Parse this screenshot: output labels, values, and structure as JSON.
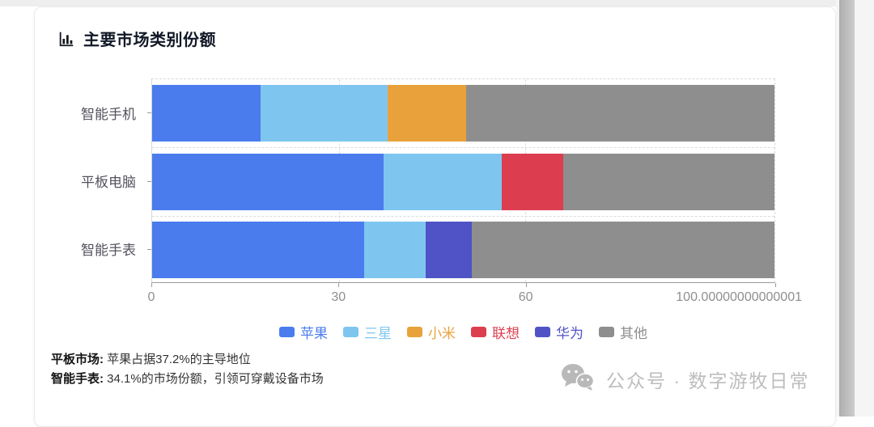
{
  "page": {
    "title": "主要市场类别份额",
    "annotations": [
      {
        "label": "平板市场:",
        "text": "苹果占据37.2%的主导地位"
      },
      {
        "label": "智能手表:",
        "text": "34.1%的市场份额，引领可穿戴设备市场"
      }
    ],
    "watermark": {
      "text": "公众号 · 数字游牧日常"
    }
  },
  "chart_data": {
    "type": "bar",
    "orientation": "horizontal",
    "stacked": true,
    "grid": "dashed",
    "legend_position": "bottom",
    "categories": [
      {
        "id": "smartphone",
        "label": "智能手机"
      },
      {
        "id": "tablet",
        "label": "平板电脑"
      },
      {
        "id": "smartwatch",
        "label": "智能手表"
      }
    ],
    "series": [
      {
        "id": "apple",
        "name": "苹果",
        "color": "#4a7cee",
        "values": [
          17.4,
          37.2,
          34.1
        ]
      },
      {
        "id": "samsung",
        "name": "三星",
        "color": "#7ec6f0",
        "values": [
          20.4,
          19.0,
          9.8
        ]
      },
      {
        "id": "xiaomi",
        "name": "小米",
        "color": "#e9a23b",
        "values": [
          12.7,
          0,
          0
        ]
      },
      {
        "id": "lenovo",
        "name": "联想",
        "color": "#dc3e50",
        "values": [
          0,
          9.9,
          0
        ]
      },
      {
        "id": "huawei",
        "name": "华为",
        "color": "#5053c5",
        "values": [
          0,
          0,
          7.5
        ]
      },
      {
        "id": "other",
        "name": "其他",
        "color": "#8e8e8e",
        "values": [
          49.5,
          33.9,
          48.6
        ]
      }
    ],
    "xlim": [
      0,
      100.00000000000001
    ],
    "x_ticks": [
      {
        "value": 0,
        "label": "0"
      },
      {
        "value": 30,
        "label": "30"
      },
      {
        "value": 60,
        "label": "60"
      },
      {
        "value": 100,
        "label": "100.00000000000001"
      }
    ]
  }
}
